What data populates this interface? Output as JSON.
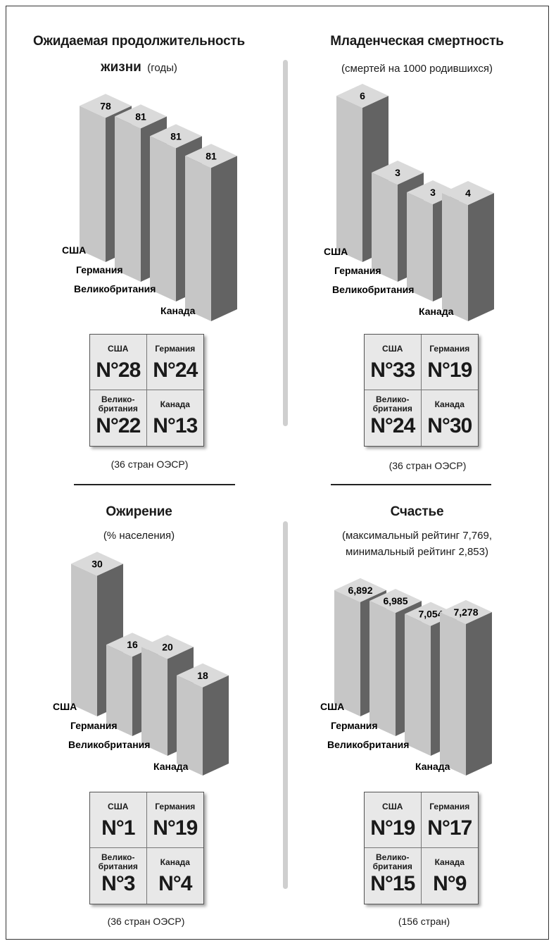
{
  "colors": {
    "front": "#c6c6c6",
    "side": "#636363",
    "top": "#dadada"
  },
  "chart_data": [
    {
      "type": "bar",
      "title": "Ожидаемая продолжительность",
      "title_line2": "жизни",
      "subtitle": "(годы)",
      "categories": [
        "США",
        "Германия",
        "Великобритания",
        "Канада"
      ],
      "values": [
        78,
        81,
        81,
        81
      ],
      "value_labels": [
        "78",
        "81",
        "81",
        "81"
      ],
      "ranks": [
        {
          "country": "США",
          "rank": "N°28"
        },
        {
          "country": "Германия",
          "rank": "N°24"
        },
        {
          "country": "Велико-\nбритания",
          "rank": "N°22"
        },
        {
          "country": "Канада",
          "rank": "N°13"
        }
      ],
      "footnote": "(36 стран ОЭСР)"
    },
    {
      "type": "bar",
      "title": "Младенческая смертность",
      "subtitle": "(смертей на 1000 родившихся)",
      "categories": [
        "США",
        "Германия",
        "Великобритания",
        "Канада"
      ],
      "values": [
        6,
        3,
        3,
        4
      ],
      "value_labels": [
        "6",
        "3",
        "3",
        "4"
      ],
      "ranks": [
        {
          "country": "США",
          "rank": "N°33"
        },
        {
          "country": "Германия",
          "rank": "N°19"
        },
        {
          "country": "Велико-\nбритания",
          "rank": "N°24"
        },
        {
          "country": "Канада",
          "rank": "N°30"
        }
      ],
      "footnote": "(36 стран ОЭСР)"
    },
    {
      "type": "bar",
      "title": "Ожирение",
      "subtitle": "(% населения)",
      "categories": [
        "США",
        "Германия",
        "Великобритания",
        "Канада"
      ],
      "values": [
        30,
        16,
        20,
        18
      ],
      "value_labels": [
        "30",
        "16",
        "20",
        "18"
      ],
      "ranks": [
        {
          "country": "США",
          "rank": "N°1"
        },
        {
          "country": "Германия",
          "rank": "N°19"
        },
        {
          "country": "Велико-\nбритания",
          "rank": "N°3"
        },
        {
          "country": "Канада",
          "rank": "N°4"
        }
      ],
      "footnote": "(36 стран ОЭСР)"
    },
    {
      "type": "bar",
      "title": "Счастье",
      "subtitle": "(максимальный рейтинг 7,769,",
      "subtitle_line2": "минимальный рейтинг 2,853)",
      "categories": [
        "США",
        "Германия",
        "Великобритания",
        "Канада"
      ],
      "values": [
        6.892,
        6.985,
        7.054,
        7.278
      ],
      "value_labels": [
        "6,892",
        "6,985",
        "7,054",
        "7,278"
      ],
      "ranks": [
        {
          "country": "США",
          "rank": "N°19"
        },
        {
          "country": "Германия",
          "rank": "N°17"
        },
        {
          "country": "Велико-\nбритания",
          "rank": "N°15"
        },
        {
          "country": "Канада",
          "rank": "N°9"
        }
      ],
      "footnote": "(156 стран)"
    }
  ]
}
